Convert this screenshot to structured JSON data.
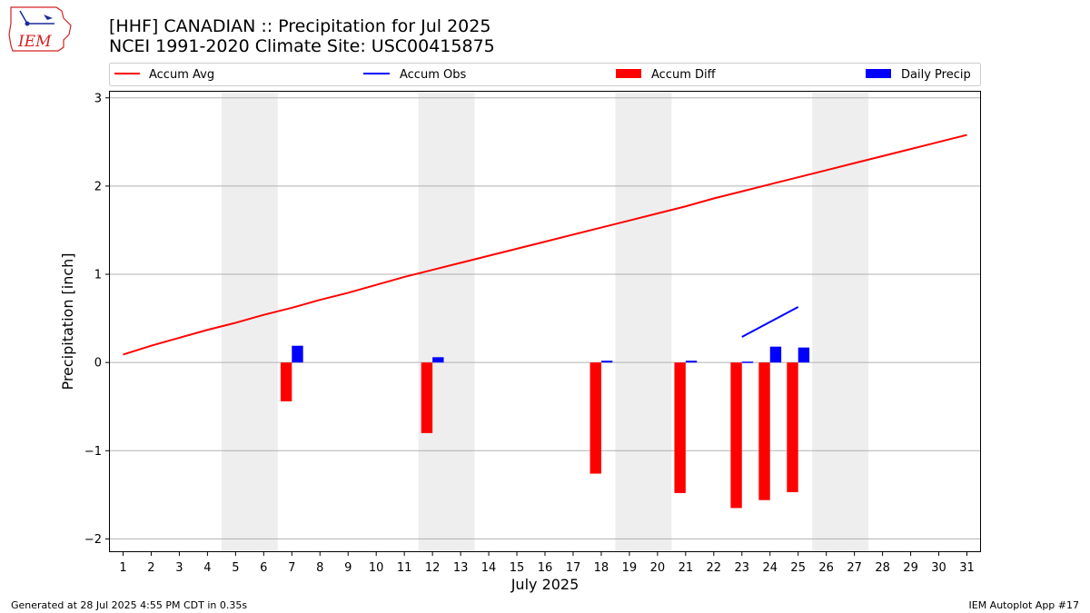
{
  "header": {
    "logo_text": "IEM",
    "title_line1": "[HHF] CANADIAN :: Precipitation for Jul 2025",
    "title_line2": "NCEI 1991-2020 Climate Site: USC00415875"
  },
  "footer": {
    "generated": "Generated at 28 Jul 2025 4:55 PM CDT in 0.35s",
    "app": "IEM Autoplot App #17"
  },
  "colors": {
    "avg": "#ff0000",
    "obs": "#0000ff",
    "diff": "#ff0000",
    "daily": "#0000ff",
    "weekend_shade": "#eeeeee",
    "grid": "#b0b0b0"
  },
  "chart_data": {
    "type": "bar",
    "xlabel": "July 2025",
    "ylabel": "Precipitation [inch]",
    "xlim": [
      0.5,
      31.5
    ],
    "ylim": [
      -2.15,
      3.08
    ],
    "yticks": [
      -2,
      -1,
      0,
      1,
      2,
      3
    ],
    "ytick_labels": [
      "−2",
      "−1",
      "0",
      "1",
      "2",
      "3"
    ],
    "grid": "horizontal",
    "legend_placement": "top, above plot",
    "legend": [
      "Accum Avg",
      "Accum Obs",
      "Accum Diff",
      "Daily Precip"
    ],
    "days": [
      1,
      2,
      3,
      4,
      5,
      6,
      7,
      8,
      9,
      10,
      11,
      12,
      13,
      14,
      15,
      16,
      17,
      18,
      19,
      20,
      21,
      22,
      23,
      24,
      25,
      26,
      27,
      28,
      29,
      30,
      31
    ],
    "weekend_spans": [
      [
        5,
        6
      ],
      [
        12,
        13
      ],
      [
        19,
        20
      ],
      [
        26,
        27
      ]
    ],
    "series": [
      {
        "name": "Accum Avg",
        "kind": "line",
        "x": [
          1,
          2,
          3,
          4,
          5,
          6,
          7,
          8,
          9,
          10,
          11,
          12,
          13,
          14,
          15,
          16,
          17,
          18,
          19,
          20,
          21,
          22,
          23,
          24,
          25,
          26,
          27,
          28,
          29,
          30,
          31
        ],
        "values": [
          0.09,
          0.19,
          0.28,
          0.37,
          0.45,
          0.54,
          0.62,
          0.71,
          0.79,
          0.88,
          0.97,
          1.05,
          1.13,
          1.21,
          1.29,
          1.37,
          1.45,
          1.53,
          1.61,
          1.69,
          1.77,
          1.86,
          1.94,
          2.02,
          2.1,
          2.18,
          2.26,
          2.34,
          2.42,
          2.5,
          2.58
        ]
      },
      {
        "name": "Accum Obs",
        "kind": "line",
        "x": [
          23,
          24,
          25
        ],
        "values": [
          0.29,
          0.46,
          0.63
        ]
      },
      {
        "name": "Accum Diff",
        "kind": "bar",
        "x": [
          7,
          12,
          18,
          21,
          23,
          24,
          25
        ],
        "values": [
          -0.44,
          -0.8,
          -1.26,
          -1.48,
          -1.65,
          -1.56,
          -1.47
        ]
      },
      {
        "name": "Daily Precip",
        "kind": "bar",
        "x": [
          7,
          12,
          18,
          21,
          23,
          24,
          25
        ],
        "values": [
          0.19,
          0.06,
          0.02,
          0.02,
          0.01,
          0.18,
          0.17
        ]
      }
    ]
  }
}
